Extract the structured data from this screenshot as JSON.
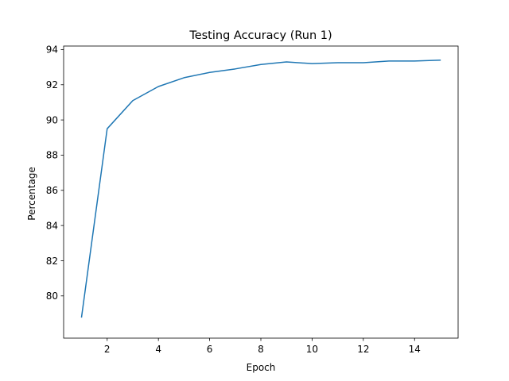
{
  "chart_data": {
    "type": "line",
    "title": "Testing Accuracy (Run 1)",
    "xlabel": "Epoch",
    "ylabel": "Percentage",
    "xlim": [
      0.3,
      15.7
    ],
    "ylim": [
      77.6,
      94.2
    ],
    "xticks": [
      2,
      4,
      6,
      8,
      10,
      12,
      14
    ],
    "yticks": [
      80,
      82,
      84,
      86,
      88,
      90,
      92,
      94
    ],
    "grid": false,
    "series": [
      {
        "color": "#1f77b4",
        "x": [
          1,
          2,
          3,
          4,
          5,
          6,
          7,
          8,
          9,
          10,
          11,
          12,
          13,
          14,
          15
        ],
        "y": [
          78.8,
          89.5,
          91.1,
          91.9,
          92.4,
          92.7,
          92.9,
          93.15,
          93.3,
          93.2,
          93.25,
          93.25,
          93.35,
          93.35,
          93.4
        ]
      }
    ]
  }
}
